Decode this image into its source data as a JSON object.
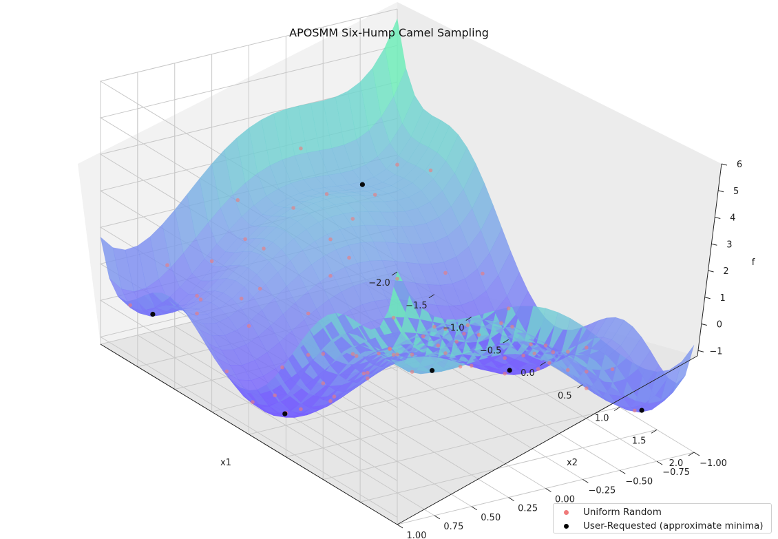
{
  "chart_data": {
    "type": "scatter",
    "subtype": "3d-surface-with-scatter",
    "title": "APOSMM Six-Hump Camel Sampling",
    "xlabel": "x1",
    "ylabel": "x2",
    "zlabel": "f",
    "xlim": [
      -2,
      2
    ],
    "ylim": [
      -1,
      1
    ],
    "zlim": [
      -1.2,
      6
    ],
    "x_ticks": [
      "−2.0",
      "−1.5",
      "−1.0",
      "−0.5",
      "0.0",
      "0.5",
      "1.0",
      "1.5",
      "2.0"
    ],
    "y_ticks": [
      "−1.00",
      "−0.75",
      "−0.50",
      "−0.25",
      "0.00",
      "0.25",
      "0.50",
      "0.75",
      "1.00"
    ],
    "z_ticks": [
      "−1",
      "0",
      "1",
      "2",
      "3",
      "4",
      "5",
      "6"
    ],
    "grid": true,
    "legend_location": "lower-right",
    "surface": "six-hump camel function f(x1,x2) = (4 − 2.1 x1² + x1⁴/3) x1² + x1 x2 + (−4 + 4 x2²) x2²",
    "series": [
      {
        "name": "Uniform Random",
        "color": "#f07a7a",
        "points": [
          [
            -1.8,
            0.9
          ],
          [
            -1.5,
            0.6
          ],
          [
            -1.2,
            0.3
          ],
          [
            -0.9,
            0.0
          ],
          [
            -0.6,
            -0.3
          ],
          [
            -0.3,
            -0.6
          ],
          [
            0.0,
            -0.9
          ],
          [
            0.3,
            0.8
          ],
          [
            0.6,
            0.5
          ],
          [
            0.9,
            0.2
          ],
          [
            1.2,
            -0.1
          ],
          [
            1.5,
            -0.4
          ],
          [
            1.8,
            -0.7
          ],
          [
            -1.6,
            -0.8
          ],
          [
            -1.3,
            -0.5
          ],
          [
            -1.0,
            -0.2
          ],
          [
            -0.7,
            0.1
          ],
          [
            -0.4,
            0.4
          ],
          [
            -0.1,
            0.7
          ],
          [
            0.2,
            -0.4
          ],
          [
            0.5,
            -0.7
          ],
          [
            0.8,
            0.9
          ],
          [
            1.1,
            0.6
          ],
          [
            1.4,
            0.3
          ],
          [
            1.7,
            0.0
          ],
          [
            -1.9,
            -0.3
          ],
          [
            -1.4,
            0.0
          ],
          [
            -0.8,
            0.6
          ],
          [
            -0.2,
            0.2
          ],
          [
            0.4,
            0.1
          ],
          [
            0.7,
            -0.2
          ],
          [
            1.0,
            -0.5
          ],
          [
            1.3,
            -0.8
          ],
          [
            1.6,
            0.7
          ],
          [
            -1.7,
            0.4
          ],
          [
            -1.1,
            0.8
          ],
          [
            -0.5,
            0.9
          ],
          [
            0.1,
            0.5
          ],
          [
            0.35,
            -0.15
          ],
          [
            0.65,
            0.35
          ],
          [
            1.25,
            0.15
          ],
          [
            1.55,
            -0.15
          ],
          [
            -1.45,
            -0.25
          ],
          [
            -0.95,
            0.45
          ],
          [
            -0.35,
            -0.15
          ],
          [
            0.15,
            -0.65
          ],
          [
            0.85,
            -0.85
          ],
          [
            1.45,
            0.85
          ],
          [
            -1.25,
            -0.85
          ],
          [
            -0.65,
            -0.65
          ],
          [
            0.05,
            0.25
          ],
          [
            0.45,
            0.65
          ],
          [
            1.05,
            -0.25
          ],
          [
            1.75,
            0.45
          ],
          [
            -1.85,
            0.15
          ],
          [
            -0.15,
            -0.35
          ],
          [
            0.25,
            0.95
          ],
          [
            0.55,
            -0.45
          ],
          [
            1.15,
            0.4
          ],
          [
            -0.45,
            0.55
          ],
          [
            -1.55,
            0.25
          ],
          [
            0.95,
            0.75
          ],
          [
            1.65,
            -0.45
          ],
          [
            -0.75,
            -0.05
          ],
          [
            0.75,
            0.05
          ],
          [
            -0.25,
            0.85
          ],
          [
            0.35,
            -0.85
          ],
          [
            1.35,
            -0.6
          ],
          [
            -1.35,
            0.65
          ],
          [
            -0.55,
            -0.85
          ],
          [
            1.9,
            -0.2
          ],
          [
            -1.9,
            0.6
          ],
          [
            0.0,
            0.0
          ],
          [
            0.2,
            0.3
          ],
          [
            -0.6,
            0.3
          ],
          [
            0.9,
            -0.6
          ],
          [
            -1.0,
            0.55
          ],
          [
            1.0,
            0.55
          ],
          [
            -0.3,
            -0.9
          ],
          [
            0.6,
            0.8
          ]
        ]
      },
      {
        "name": "User-Requested (approximate minima)",
        "color": "#000000",
        "points": [
          [
            0.0898,
            -0.7126
          ],
          [
            -0.0898,
            0.7126
          ],
          [
            -1.7036,
            0.7961
          ],
          [
            1.7036,
            -0.7961
          ],
          [
            -1.6071,
            -0.5687
          ],
          [
            1.6071,
            0.5687
          ]
        ]
      }
    ]
  }
}
